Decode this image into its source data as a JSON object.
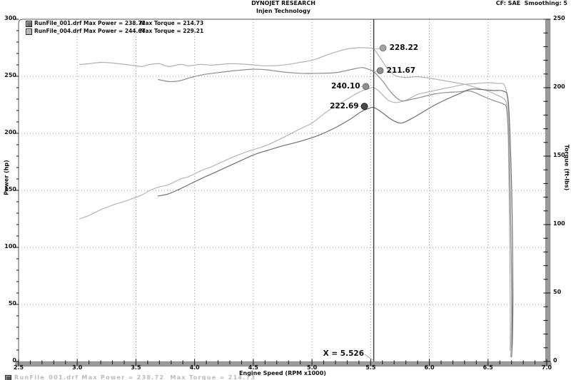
{
  "header": {
    "title": "DYNOJET RESEARCH",
    "subtitle": "Injen Technology",
    "correction": "CF: SAE  Smoothing: 5"
  },
  "legend": {
    "rows": [
      {
        "file": "RunFile_001.drf",
        "power": "Max Power = 238.72",
        "torque": "Max Torque = 214.73",
        "swatch_color": "#6f6f6f"
      },
      {
        "file": "RunFile_004.drf",
        "power": "Max Power = 244.67",
        "torque": "Max Torque = 229.21",
        "swatch_color": "#b2b2b2"
      }
    ]
  },
  "axes": {
    "x_title": "Engine Speed (RPM x1000)",
    "y_left_title": "Power (hp)",
    "y_right_title": "Torque (ft-lbs)"
  },
  "cursor": {
    "label": "X = 5.526",
    "x_value": 5.526
  },
  "bottom_strip": {
    "text": "RunFile_001.drf Max Power = 238.72  Max Torque = 214.73"
  },
  "chart_data": {
    "type": "line",
    "title": "DYNOJET RESEARCH",
    "subtitle": "Injen Technology",
    "xlabel": "Engine Speed (RPM x1000)",
    "ylabel_left": "Power (hp)",
    "ylabel_right": "Torque (ft-lbs)",
    "x_range": [
      2.5,
      7.0
    ],
    "y_left_range": [
      0,
      300
    ],
    "y_right_range": [
      0,
      250
    ],
    "x_ticks": [
      2.5,
      3.0,
      3.5,
      4.0,
      4.5,
      5.0,
      5.5,
      6.0,
      6.5,
      7.0
    ],
    "y_left_ticks": [
      0,
      50,
      100,
      150,
      200,
      250,
      300
    ],
    "y_right_ticks": [
      0,
      50,
      100,
      150,
      200,
      250
    ],
    "grid": "dotted",
    "legend_position": "top-left",
    "cursor_x": 5.526,
    "grid_color": "#9a9a9a",
    "frame_bar_color": "#9b9b9b",
    "cursor_color": "#3a3a3a",
    "series": [
      {
        "id": "torque_004",
        "name": "RunFile_004.drf Torque",
        "axis": "right",
        "color": "#b2b2b2",
        "points": [
          [
            3.02,
            217
          ],
          [
            3.1,
            217.5
          ],
          [
            3.2,
            218.5
          ],
          [
            3.3,
            218
          ],
          [
            3.45,
            216.5
          ],
          [
            3.55,
            215.5
          ],
          [
            3.62,
            217
          ],
          [
            3.7,
            217.5
          ],
          [
            3.78,
            215.5
          ],
          [
            3.88,
            217
          ],
          [
            3.95,
            216
          ],
          [
            4.05,
            217
          ],
          [
            4.15,
            216.5
          ],
          [
            4.3,
            217.5
          ],
          [
            4.45,
            217
          ],
          [
            4.6,
            216
          ],
          [
            4.75,
            216.5
          ],
          [
            4.9,
            218.5
          ],
          [
            5.0,
            220
          ],
          [
            5.1,
            223
          ],
          [
            5.2,
            226
          ],
          [
            5.3,
            228.3
          ],
          [
            5.4,
            229.2
          ],
          [
            5.48,
            229
          ],
          [
            5.526,
            228.22
          ],
          [
            5.58,
            222
          ],
          [
            5.65,
            213
          ],
          [
            5.72,
            208.5
          ],
          [
            5.8,
            207.5
          ],
          [
            5.9,
            208
          ],
          [
            6.0,
            207
          ],
          [
            6.1,
            205.5
          ],
          [
            6.2,
            204
          ],
          [
            6.3,
            202.5
          ],
          [
            6.4,
            200
          ],
          [
            6.5,
            197.5
          ],
          [
            6.58,
            194.5
          ],
          [
            6.64,
            191.5
          ],
          [
            6.66,
            186
          ],
          [
            6.672,
            165
          ],
          [
            6.68,
            120
          ],
          [
            6.687,
            60
          ],
          [
            6.69,
            20
          ],
          [
            6.688,
            8
          ]
        ]
      },
      {
        "id": "power_004",
        "name": "RunFile_004.drf Power",
        "axis": "left",
        "color": "#b6b6b6",
        "points": [
          [
            3.02,
            125
          ],
          [
            3.1,
            128
          ],
          [
            3.2,
            133
          ],
          [
            3.3,
            137
          ],
          [
            3.45,
            142
          ],
          [
            3.55,
            146
          ],
          [
            3.62,
            150
          ],
          [
            3.7,
            153
          ],
          [
            3.78,
            155
          ],
          [
            3.88,
            160
          ],
          [
            3.95,
            162
          ],
          [
            4.05,
            167
          ],
          [
            4.15,
            171
          ],
          [
            4.3,
            178
          ],
          [
            4.45,
            184
          ],
          [
            4.6,
            189
          ],
          [
            4.75,
            196
          ],
          [
            4.9,
            204
          ],
          [
            5.0,
            209
          ],
          [
            5.1,
            217
          ],
          [
            5.2,
            224
          ],
          [
            5.3,
            230
          ],
          [
            5.4,
            236
          ],
          [
            5.48,
            239
          ],
          [
            5.526,
            240.1
          ],
          [
            5.58,
            236
          ],
          [
            5.65,
            229
          ],
          [
            5.72,
            227
          ],
          [
            5.8,
            229
          ],
          [
            5.9,
            234
          ],
          [
            6.0,
            236.5
          ],
          [
            6.1,
            238.7
          ],
          [
            6.2,
            240.8
          ],
          [
            6.3,
            242.9
          ],
          [
            6.4,
            243.7
          ],
          [
            6.5,
            244.4
          ],
          [
            6.58,
            243.7
          ],
          [
            6.64,
            242
          ],
          [
            6.67,
            225
          ],
          [
            6.685,
            170
          ],
          [
            6.695,
            110
          ],
          [
            6.7,
            60
          ],
          [
            6.698,
            25
          ],
          [
            6.692,
            4
          ]
        ]
      },
      {
        "id": "torque_001",
        "name": "RunFile_001.drf Torque",
        "axis": "right",
        "color": "#8e8e8e",
        "points": [
          [
            3.69,
            206
          ],
          [
            3.78,
            204.5
          ],
          [
            3.87,
            205
          ],
          [
            3.97,
            207.5
          ],
          [
            4.07,
            209.5
          ],
          [
            4.2,
            211
          ],
          [
            4.35,
            212.5
          ],
          [
            4.5,
            213.5
          ],
          [
            4.62,
            213
          ],
          [
            4.75,
            211.5
          ],
          [
            4.9,
            210.5
          ],
          [
            5.05,
            210.5
          ],
          [
            5.2,
            211
          ],
          [
            5.32,
            213
          ],
          [
            5.42,
            214.7
          ],
          [
            5.48,
            213.5
          ],
          [
            5.526,
            211.67
          ],
          [
            5.6,
            205
          ],
          [
            5.68,
            196
          ],
          [
            5.76,
            190.5
          ],
          [
            5.85,
            191.5
          ],
          [
            5.95,
            193.5
          ],
          [
            6.05,
            195.5
          ],
          [
            6.15,
            196.5
          ],
          [
            6.25,
            197
          ],
          [
            6.35,
            197.5
          ],
          [
            6.45,
            194
          ],
          [
            6.55,
            190.5
          ],
          [
            6.63,
            188
          ],
          [
            6.66,
            183
          ],
          [
            6.68,
            150
          ],
          [
            6.695,
            90
          ],
          [
            6.705,
            35
          ],
          [
            6.703,
            10
          ]
        ]
      },
      {
        "id": "power_001",
        "name": "RunFile_001.drf Power",
        "axis": "left",
        "color": "#6f6f6f",
        "points": [
          [
            3.69,
            145
          ],
          [
            3.78,
            147
          ],
          [
            3.87,
            151
          ],
          [
            3.97,
            156
          ],
          [
            4.07,
            161
          ],
          [
            4.2,
            167
          ],
          [
            4.35,
            174
          ],
          [
            4.5,
            181
          ],
          [
            4.62,
            185
          ],
          [
            4.75,
            189
          ],
          [
            4.9,
            193
          ],
          [
            5.05,
            198
          ],
          [
            5.2,
            205
          ],
          [
            5.32,
            212
          ],
          [
            5.42,
            219
          ],
          [
            5.48,
            221.5
          ],
          [
            5.526,
            222.69
          ],
          [
            5.6,
            218
          ],
          [
            5.68,
            212
          ],
          [
            5.76,
            209
          ],
          [
            5.85,
            213
          ],
          [
            5.95,
            219
          ],
          [
            6.05,
            225
          ],
          [
            6.15,
            230
          ],
          [
            6.25,
            234.5
          ],
          [
            6.35,
            238.7
          ],
          [
            6.45,
            238.3
          ],
          [
            6.55,
            237.5
          ],
          [
            6.63,
            237
          ],
          [
            6.67,
            230
          ],
          [
            6.69,
            190
          ],
          [
            6.705,
            130
          ],
          [
            6.712,
            60
          ],
          [
            6.708,
            20
          ],
          [
            6.7,
            4
          ]
        ]
      }
    ],
    "cursor_values": [
      {
        "label": "228.22",
        "value": 228.22,
        "series": "torque_004",
        "side": "right",
        "marker_dx": 13,
        "marker_color": "#a2a2a2",
        "marker_edge": "#7d7d7d"
      },
      {
        "label": "211.67",
        "value": 211.67,
        "series": "torque_001",
        "side": "right",
        "marker_dx": 9,
        "marker_color": "#8f8f8f",
        "marker_edge": "#666666"
      },
      {
        "label": "240.10",
        "value": 240.1,
        "series": "power_004",
        "side": "left",
        "marker_dx": -11,
        "marker_color": "#8f8f8f",
        "marker_edge": "#6b6b6b"
      },
      {
        "label": "222.69",
        "value": 222.69,
        "series": "power_001",
        "side": "left",
        "marker_dx": -13,
        "marker_color": "#4a4a4a",
        "marker_edge": "#1e1e1e"
      }
    ]
  }
}
